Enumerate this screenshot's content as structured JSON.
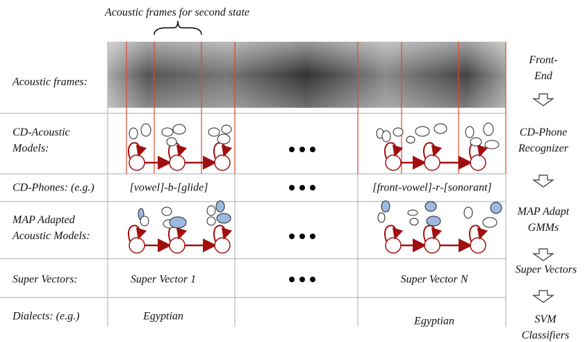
{
  "annotation": "Acoustic frames for second state",
  "row_labels": [
    "Acoustic frames:",
    "CD-Acoustic Models:",
    "CD-Phones: (e.g.)",
    "MAP Adapted Acoustic Models:",
    "Super Vectors:",
    "Dialects: (e.g.)"
  ],
  "stages": [
    "Front-End",
    "CD-Phone Recognizer",
    "MAP Adapt GMMs",
    "Super Vectors",
    "SVM Classifiers"
  ],
  "phones": [
    "[vowel]-b-[glide]",
    "[front-vowel]-r-[sonorant]"
  ],
  "super_vectors": [
    "Super Vector 1",
    "Super Vector N"
  ],
  "dialects": [
    "Egyptian",
    "Egyptian"
  ]
}
